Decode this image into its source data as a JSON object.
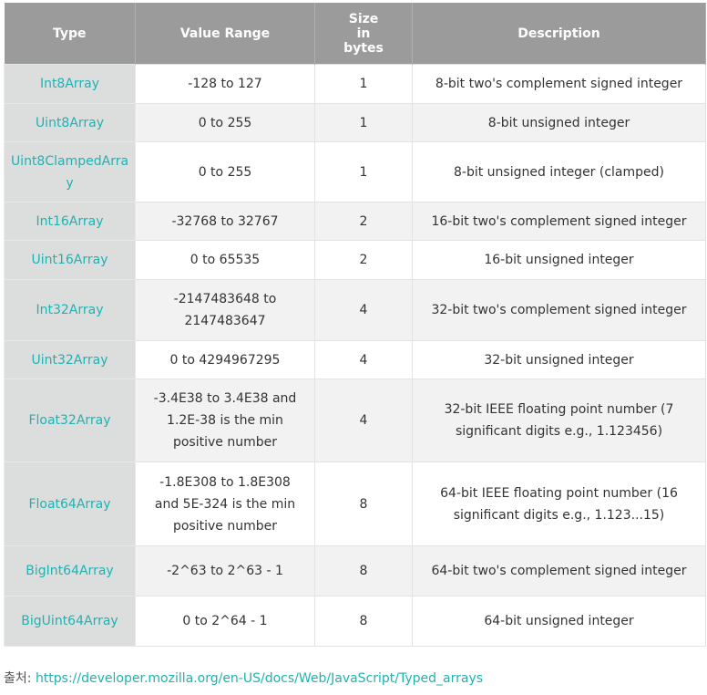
{
  "headers": [
    "Type",
    "Value Range",
    "Size in bytes",
    "Description"
  ],
  "rows": [
    [
      "Int8Array",
      "-128 to 127",
      "1",
      "8-bit two's complement signed integer"
    ],
    [
      "Uint8Array",
      "0 to 255",
      "1",
      "8-bit unsigned integer"
    ],
    [
      "Uint8ClampedArray",
      "0 to 255",
      "1",
      "8-bit unsigned integer (clamped)"
    ],
    [
      "Int16Array",
      "-32768 to 32767",
      "2",
      "16-bit two's complement signed integer"
    ],
    [
      "Uint16Array",
      "0 to 65535",
      "2",
      "16-bit unsigned integer"
    ],
    [
      "Int32Array",
      "-2147483648 to 2147483647",
      "4",
      "32-bit two's complement signed integer"
    ],
    [
      "Uint32Array",
      "0 to 4294967295",
      "4",
      "32-bit unsigned integer"
    ],
    [
      "Float32Array",
      "-3.4E38 to 3.4E38 and 1.2E-38 is the min positive number",
      "4",
      "32-bit IEEE floating point number (7 significant digits e.g., 1.123456)"
    ],
    [
      "Float64Array",
      "-1.8E308 to 1.8E308 and 5E-324 is the min positive number",
      "8",
      "64-bit IEEE floating point number (16 significant digits e.g., 1.123...15)"
    ],
    [
      "BigInt64Array",
      "-2^63 to 2^63 - 1",
      "8",
      "64-bit two's complement signed integer"
    ],
    [
      "BigUint64Array",
      "0 to 2^64 - 1",
      "8",
      "64-bit unsigned integer"
    ]
  ],
  "source": {
    "label": "출처:",
    "url": "https://developer.mozilla.org/en-US/docs/Web/JavaScript/Typed_arrays"
  },
  "colors": {
    "header": "#9b9b9b",
    "link": "#1fb2b2",
    "type_col": "#dcdedd"
  }
}
